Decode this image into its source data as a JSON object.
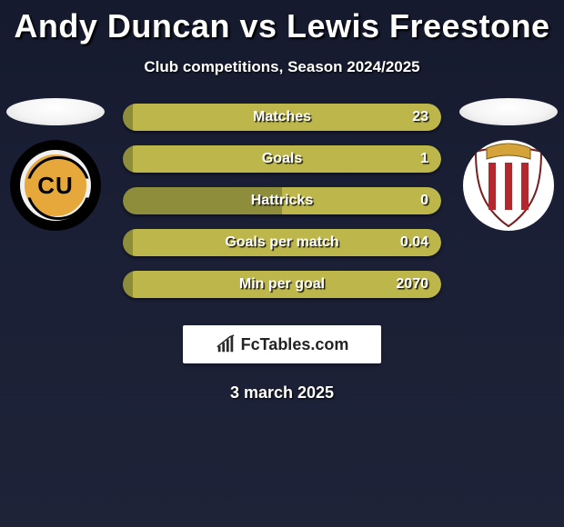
{
  "background": {
    "gradient_from": "#151a2e",
    "gradient_to": "#1e2338"
  },
  "title": {
    "text": "Andy Duncan vs Lewis Freestone",
    "color": "#ffffff",
    "fontsize": 36,
    "fontweight": 800
  },
  "subtitle": {
    "text": "Club competitions, Season 2024/2025",
    "color": "#ffffff",
    "fontsize": 17,
    "fontweight": 700
  },
  "player_left": {
    "name": "Andy Duncan",
    "club_code": "CU",
    "crest_bg": "#000000",
    "crest_accent": "#e6a83a",
    "bar_color": "#8e8d3b"
  },
  "player_right": {
    "name": "Lewis Freestone",
    "club_code": "STEVENAGE",
    "crest_bg": "#ffffff",
    "crest_stripes": [
      "#b3272d",
      "#ffffff"
    ],
    "crest_gold": "#d4a43a",
    "bar_color": "#bdb74b"
  },
  "bar_style": {
    "track_color": "#3b3f2e",
    "height": 30,
    "radius": 15,
    "gap": 16,
    "label_fontsize": 16,
    "label_color": "#ffffff",
    "value_fontsize": 16
  },
  "stats": [
    {
      "label": "Matches",
      "left_value": "",
      "right_value": "23",
      "left_pct": 3,
      "right_pct": 97
    },
    {
      "label": "Goals",
      "left_value": "",
      "right_value": "1",
      "left_pct": 3,
      "right_pct": 97
    },
    {
      "label": "Hattricks",
      "left_value": "",
      "right_value": "0",
      "left_pct": 50,
      "right_pct": 50
    },
    {
      "label": "Goals per match",
      "left_value": "",
      "right_value": "0.04",
      "left_pct": 3,
      "right_pct": 97
    },
    {
      "label": "Min per goal",
      "left_value": "",
      "right_value": "2070",
      "left_pct": 3,
      "right_pct": 97
    }
  ],
  "brand": {
    "text": "FcTables.com",
    "bg": "#ffffff",
    "text_color": "#222222",
    "icon_color": "#2a2a2a"
  },
  "date": {
    "text": "3 march 2025",
    "color": "#ffffff",
    "fontsize": 18
  }
}
